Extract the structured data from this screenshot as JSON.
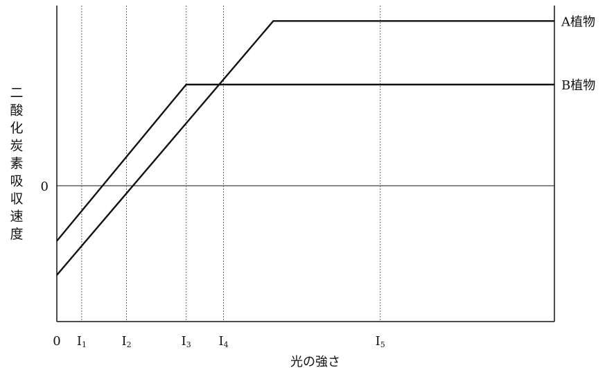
{
  "chart_data": {
    "type": "line",
    "title": "",
    "xlabel": "光の強さ",
    "ylabel": "二酸化炭素吸収速度",
    "y_zero_label": "0",
    "x_origin_label": "0",
    "x_markers": [
      {
        "name": "I",
        "sub": "1",
        "x": 1.0
      },
      {
        "name": "I",
        "sub": "2",
        "x": 2.8
      },
      {
        "name": "I",
        "sub": "3",
        "x": 5.2
      },
      {
        "name": "I",
        "sub": "4",
        "x": 6.7
      },
      {
        "name": "I",
        "sub": "5",
        "x": 13.0
      }
    ],
    "xlim": [
      0,
      20
    ],
    "ylim": [
      -4.7,
      5.5
    ],
    "grid": "dotted vertical lines at markers",
    "series": [
      {
        "name": "A植物",
        "points": [
          [
            0,
            -3.2
          ],
          [
            8.7,
            5.0
          ],
          [
            20,
            5.0
          ]
        ]
      },
      {
        "name": "B植物",
        "points": [
          [
            0,
            -2.1
          ],
          [
            5.2,
            2.95
          ],
          [
            20,
            2.95
          ]
        ]
      }
    ]
  }
}
